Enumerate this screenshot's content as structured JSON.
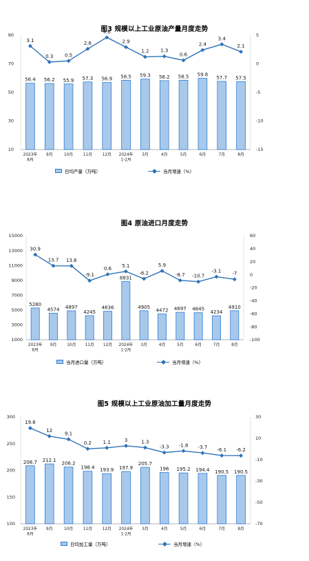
{
  "chart_data": [
    {
      "type": "bar+line",
      "title": "图3 规模以上工业原油产量月度走势",
      "categories": [
        "2023年\n8月",
        "9月",
        "10月",
        "11月",
        "12月",
        "2024年\n1-2月",
        "3月",
        "4月",
        "5月",
        "6月",
        "7月",
        "8月"
      ],
      "series": [
        {
          "name": "日均产量（万吨）",
          "kind": "bar",
          "axis": "left",
          "values": [
            56.4,
            56.2,
            55.9,
            57.3,
            56.9,
            58.5,
            59.3,
            58.2,
            58.5,
            59.8,
            57.7,
            57.5
          ]
        },
        {
          "name": "当月增速（%）",
          "kind": "line",
          "axis": "right",
          "values": [
            3.1,
            0.3,
            0.5,
            2.6,
            4.6,
            2.9,
            1.2,
            1.3,
            0.6,
            2.4,
            3.4,
            2.1
          ]
        }
      ],
      "left_axis": {
        "min": 10,
        "max": 90,
        "ticks": [
          10,
          30,
          50,
          70,
          90
        ]
      },
      "right_axis": {
        "min": -15,
        "max": 5,
        "ticks": [
          5,
          0,
          -5,
          -10,
          -15
        ]
      },
      "colors": {
        "bar_fill": "#a9c9ea",
        "bar_stroke": "#2a7bd6",
        "line": "#2f72b8"
      }
    },
    {
      "type": "bar+line",
      "title": "图4 原油进口月度走势",
      "categories": [
        "2023年\n8月",
        "9月",
        "10月",
        "11月",
        "12月",
        "2024年\n1-2月",
        "3月",
        "4月",
        "5月",
        "6月",
        "7月",
        "8月"
      ],
      "series": [
        {
          "name": "当月进口量（万吨）",
          "kind": "bar",
          "axis": "left",
          "values": [
            5280,
            4574,
            4897,
            4245,
            4836,
            8831,
            4905,
            4472,
            4697,
            4645,
            4234,
            4910
          ]
        },
        {
          "name": "当月增速（%）",
          "kind": "line",
          "axis": "right",
          "values": [
            30.9,
            13.7,
            13.6,
            -9.1,
            0.6,
            5.1,
            -6.2,
            5.9,
            -8.7,
            -10.7,
            -3.1,
            -7.0
          ]
        }
      ],
      "left_axis": {
        "min": 1000,
        "max": 15000,
        "ticks": [
          1000,
          3000,
          5000,
          7000,
          9000,
          11000,
          13000,
          15000
        ]
      },
      "right_axis": {
        "min": -100,
        "max": 60,
        "ticks": [
          60,
          40,
          20,
          0,
          -20,
          -40,
          -60,
          -80,
          -100
        ]
      },
      "colors": {
        "bar_fill": "#a9c9ea",
        "bar_stroke": "#2a7bd6",
        "line": "#2f72b8"
      }
    },
    {
      "type": "bar+line",
      "title": "图5 规模以上工业原油加工量月度走势",
      "categories": [
        "2023年\n8月",
        "9月",
        "10月",
        "11月",
        "12月",
        "2024年\n1-2月",
        "3月",
        "4月",
        "5月",
        "6月",
        "7月",
        "8月"
      ],
      "series": [
        {
          "name": "日均加工量（万吨）",
          "kind": "bar",
          "axis": "left",
          "values": [
            208.7,
            212.1,
            206.2,
            198.4,
            193.9,
            197.9,
            205.7,
            196.0,
            195.2,
            194.4,
            190.5,
            190.5
          ]
        },
        {
          "name": "当月增速（%）",
          "kind": "line",
          "axis": "right",
          "values": [
            19.6,
            12.0,
            9.1,
            0.2,
            1.1,
            3.0,
            1.3,
            -3.3,
            -1.8,
            -3.7,
            -6.1,
            -6.2
          ]
        }
      ],
      "left_axis": {
        "min": 100,
        "max": 300,
        "ticks": [
          100,
          150,
          200,
          250,
          300
        ]
      },
      "right_axis": {
        "min": -70,
        "max": 30,
        "ticks": [
          30,
          10,
          -10,
          -30,
          -50,
          -70
        ]
      },
      "colors": {
        "bar_fill": "#a9c9ea",
        "bar_stroke": "#2a7bd6",
        "line": "#2f72b8"
      }
    }
  ]
}
